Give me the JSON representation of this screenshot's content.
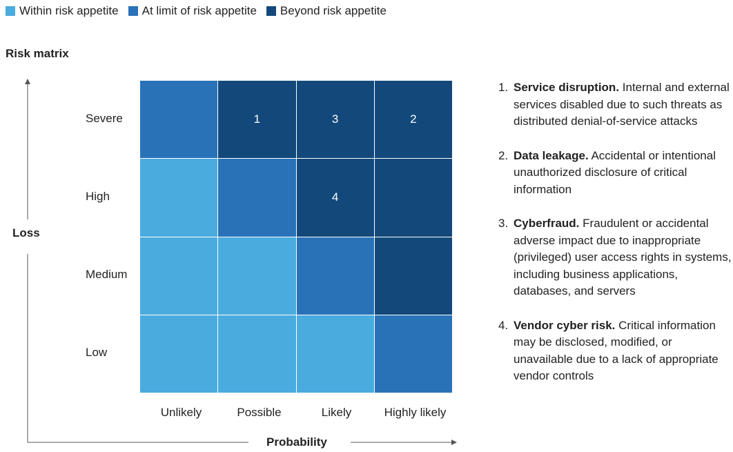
{
  "legend": [
    {
      "label": "Within risk appetite",
      "color": "#4aabdf"
    },
    {
      "label": "At limit of risk appetite",
      "color": "#2a72b8"
    },
    {
      "label": "Beyond risk appetite",
      "color": "#13497a"
    }
  ],
  "title": "Risk matrix",
  "axes": {
    "y_label": "Loss",
    "x_label": "Probability"
  },
  "rows": [
    "Severe",
    "High",
    "Medium",
    "Low"
  ],
  "columns": [
    "Unlikely",
    "Possible",
    "Likely",
    "Highly likely"
  ],
  "chart_data": {
    "type": "heatmap",
    "title": "Risk matrix",
    "xlabel": "Probability",
    "ylabel": "Loss",
    "x_categories": [
      "Unlikely",
      "Possible",
      "Likely",
      "Highly likely"
    ],
    "y_categories": [
      "Severe",
      "High",
      "Medium",
      "Low"
    ],
    "levels": [
      "Within risk appetite",
      "At limit of risk appetite",
      "Beyond risk appetite"
    ],
    "cells": [
      [
        {
          "level": 1,
          "label": ""
        },
        {
          "level": 2,
          "label": "1"
        },
        {
          "level": 2,
          "label": "3"
        },
        {
          "level": 2,
          "label": "2"
        }
      ],
      [
        {
          "level": 0,
          "label": ""
        },
        {
          "level": 1,
          "label": ""
        },
        {
          "level": 2,
          "label": "4"
        },
        {
          "level": 2,
          "label": ""
        }
      ],
      [
        {
          "level": 0,
          "label": ""
        },
        {
          "level": 0,
          "label": ""
        },
        {
          "level": 1,
          "label": ""
        },
        {
          "level": 2,
          "label": ""
        }
      ],
      [
        {
          "level": 0,
          "label": ""
        },
        {
          "level": 0,
          "label": ""
        },
        {
          "level": 0,
          "label": ""
        },
        {
          "level": 1,
          "label": ""
        }
      ]
    ]
  },
  "risks": [
    {
      "num": "1.",
      "title": "Service disruption.",
      "text": " Internal and external services disabled due to such threats as distributed denial-of-service attacks"
    },
    {
      "num": "2.",
      "title": "Data leakage.",
      "text": " Accidental or intentional unauthorized disclosure of critical information"
    },
    {
      "num": "3.",
      "title": "Cyberfraud.",
      "text": " Fraudulent or accidental adverse impact due to inappropriate (privileged) user access rights in systems, including business applications, databases, and servers"
    },
    {
      "num": "4.",
      "title": "Vendor cyber risk.",
      "text": " Critical information may be disclosed, modified, or unavailable due to a lack of appropriate vendor controls"
    }
  ]
}
